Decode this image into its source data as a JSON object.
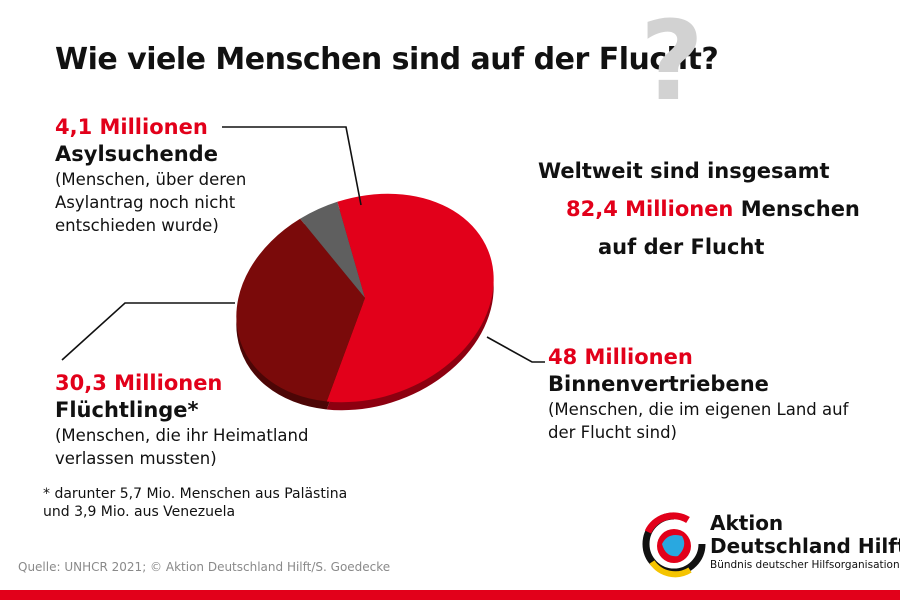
{
  "title": "Wie viele Menschen sind auf der Flucht?",
  "chart_data": {
    "type": "pie",
    "unit": "Millionen",
    "slices": [
      {
        "key": "asyl",
        "value": 4.1,
        "value_label": "4,1 Millionen",
        "name": "Asylsuchende",
        "description": "(Menschen, über deren Asylantrag noch nicht entschieden wurde)",
        "color": "#5f5f5f"
      },
      {
        "key": "binnen",
        "value": 48,
        "value_label": "48 Millionen",
        "name": "Binnenvertriebene",
        "description": "(Menschen, die im eigenen Land auf der Flucht sind)",
        "color": "#e2001a"
      },
      {
        "key": "fluecht",
        "value": 30.3,
        "value_label": "30,3 Millionen",
        "name": "Flüchtlinge*",
        "description": "(Menschen, die ihr Heimatland verlassen mussten)",
        "color": "#7a0a0a"
      }
    ]
  },
  "footnote": "* darunter 5,7 Mio. Menschen aus Palästina und 3,9 Mio. aus Venezuela",
  "summary": {
    "line1": "Weltweit sind insgesamt",
    "line2_highlight": "82,4 Millionen",
    "line2_rest": " Menschen",
    "line3": "auf der Flucht"
  },
  "source": "Quelle: UNHCR 2021; © Aktion Deutschland Hilft/S. Goedecke",
  "logo": {
    "line1": "Aktion",
    "line2": "Deutschland Hilft",
    "line3": "Bündnis deutscher Hilfsorganisationen"
  },
  "colors": {
    "accent": "#e2001a",
    "dark_red": "#7a0a0a",
    "grey": "#5f5f5f"
  }
}
